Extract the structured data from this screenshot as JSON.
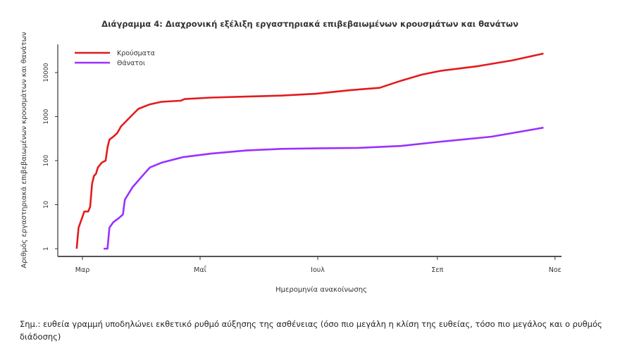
{
  "chart_data": {
    "type": "line",
    "title": "Διάγραμμα 4: Διαχρονική εξέλιξη εργαστηριακά επιβεβαιωμένων κρουσμάτων και θανάτων",
    "xlabel": "Ημερομηνία ανακοίνωσης",
    "ylabel": "Αριθμός εργαστηριακά επιβεβαιωμένων κρουσμάτων και θανάτων",
    "y_scale": "log",
    "ylim": [
      1,
      50000
    ],
    "y_ticks": [
      {
        "v": 1,
        "label": "1"
      },
      {
        "v": 10,
        "label": "10"
      },
      {
        "v": 100,
        "label": "100"
      },
      {
        "v": 1000,
        "label": "1000"
      },
      {
        "v": 10000,
        "label": "10000"
      }
    ],
    "x_ticks": [
      {
        "date": "2020-03-01",
        "label": "Μαρ"
      },
      {
        "date": "2020-05-01",
        "label": "Μαΐ"
      },
      {
        "date": "2020-07-01",
        "label": "Ιουλ"
      },
      {
        "date": "2020-09-01",
        "label": "Σεπ"
      },
      {
        "date": "2020-11-01",
        "label": "Νοε"
      }
    ],
    "xlim": [
      "2020-02-18",
      "2020-11-01"
    ],
    "grid": false,
    "legend_position": "top-left",
    "series": [
      {
        "name": "Κρούσματα",
        "color": "#e41a1c",
        "points": [
          [
            "2020-02-27",
            1
          ],
          [
            "2020-02-28",
            3
          ],
          [
            "2020-02-29",
            4
          ],
          [
            "2020-03-02",
            7
          ],
          [
            "2020-03-04",
            7
          ],
          [
            "2020-03-05",
            9
          ],
          [
            "2020-03-06",
            30
          ],
          [
            "2020-03-07",
            45
          ],
          [
            "2020-03-08",
            50
          ],
          [
            "2020-03-09",
            70
          ],
          [
            "2020-03-11",
            90
          ],
          [
            "2020-03-13",
            100
          ],
          [
            "2020-03-14",
            200
          ],
          [
            "2020-03-15",
            300
          ],
          [
            "2020-03-17",
            350
          ],
          [
            "2020-03-19",
            420
          ],
          [
            "2020-03-21",
            600
          ],
          [
            "2020-03-26",
            1000
          ],
          [
            "2020-03-30",
            1500
          ],
          [
            "2020-04-05",
            1900
          ],
          [
            "2020-04-11",
            2170
          ],
          [
            "2020-04-21",
            2300
          ],
          [
            "2020-04-23",
            2500
          ],
          [
            "2020-05-07",
            2700
          ],
          [
            "2020-05-25",
            2850
          ],
          [
            "2020-06-12",
            3000
          ],
          [
            "2020-06-30",
            3300
          ],
          [
            "2020-07-18",
            4000
          ],
          [
            "2020-08-02",
            4500
          ],
          [
            "2020-08-13",
            6500
          ],
          [
            "2020-08-24",
            9000
          ],
          [
            "2020-09-03",
            11000
          ],
          [
            "2020-09-22",
            14000
          ],
          [
            "2020-10-10",
            19000
          ],
          [
            "2020-10-26",
            27000
          ]
        ]
      },
      {
        "name": "Θάνατοι",
        "color": "#9b30ff",
        "points": [
          [
            "2020-03-12",
            1
          ],
          [
            "2020-03-14",
            1
          ],
          [
            "2020-03-15",
            3
          ],
          [
            "2020-03-17",
            4
          ],
          [
            "2020-03-20",
            5
          ],
          [
            "2020-03-22",
            6
          ],
          [
            "2020-03-23",
            13
          ],
          [
            "2020-03-27",
            25
          ],
          [
            "2020-04-02",
            50
          ],
          [
            "2020-04-05",
            70
          ],
          [
            "2020-04-11",
            90
          ],
          [
            "2020-04-22",
            120
          ],
          [
            "2020-05-07",
            145
          ],
          [
            "2020-05-25",
            170
          ],
          [
            "2020-06-12",
            185
          ],
          [
            "2020-06-30",
            190
          ],
          [
            "2020-07-22",
            195
          ],
          [
            "2020-08-13",
            215
          ],
          [
            "2020-09-03",
            270
          ],
          [
            "2020-09-29",
            350
          ],
          [
            "2020-10-26",
            560
          ]
        ]
      }
    ]
  },
  "note": "Σημ.: ευθεία γραμμή υποδηλώνει εκθετικό ρυθμό αύξησης της ασθένειας (όσο πιο μεγάλη η κλίση της ευθείας, τόσο πιο μεγάλος και ο ρυθμός διάδοσης)"
}
